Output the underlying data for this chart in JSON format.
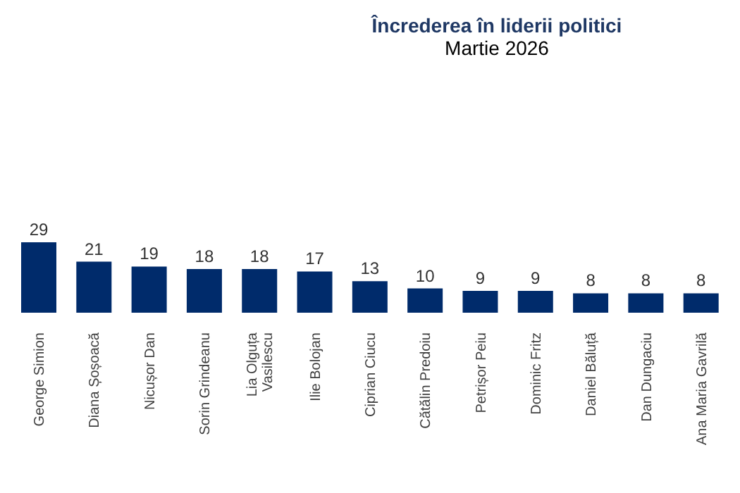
{
  "chart_data": {
    "type": "bar",
    "title": "Încrederea în liderii politici",
    "subtitle": "Martie 2026",
    "categories": [
      "George Simion",
      "Diana Șoșoacă",
      "Nicușor Dan",
      "Sorin Grindeanu",
      "Lia Olguța Vasilescu",
      "Ilie Bolojan",
      "Ciprian Ciucu",
      "Cătălin Predoiu",
      "Petrișor Peiu",
      "Dominic Fritz",
      "Daniel Băluță",
      "Dan Dungaciu",
      "Ana Maria Gavrilă"
    ],
    "values": [
      29,
      21,
      19,
      18,
      18,
      17,
      13,
      10,
      9,
      9,
      8,
      8,
      8
    ],
    "color": "#002b6b",
    "data_labels": true,
    "grid": false,
    "legend": false
  }
}
